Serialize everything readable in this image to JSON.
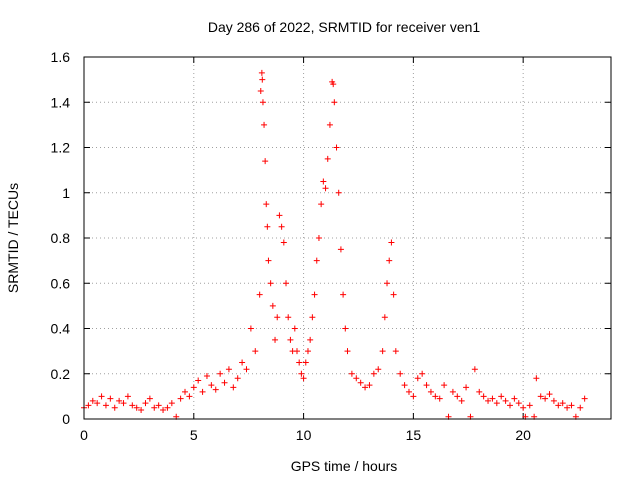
{
  "chart_data": {
    "type": "scatter",
    "title": "Day 286 of 2022, SRMTID for receiver ven1",
    "xlabel": "GPS time / hours",
    "ylabel": "SRMTID / TECUs",
    "xlim": [
      0,
      24
    ],
    "ylim": [
      0,
      1.6
    ],
    "x_ticks": [
      0,
      5,
      10,
      15,
      20
    ],
    "x_tick_labels": [
      "0",
      "5",
      "10",
      "15",
      "20"
    ],
    "y_ticks": [
      0,
      0.2,
      0.4,
      0.6,
      0.8,
      1.0,
      1.2,
      1.4,
      1.6
    ],
    "y_tick_labels": [
      "0",
      "0.2",
      "0.4",
      "0.6",
      "0.8",
      "1",
      "1.2",
      "1.4",
      "1.6"
    ],
    "grid": true,
    "marker": "+",
    "color": "#ff0000",
    "series": [
      {
        "name": "ven1",
        "points": [
          [
            0.0,
            0.05
          ],
          [
            0.2,
            0.06
          ],
          [
            0.4,
            0.08
          ],
          [
            0.6,
            0.07
          ],
          [
            0.8,
            0.1
          ],
          [
            1.0,
            0.06
          ],
          [
            1.2,
            0.09
          ],
          [
            1.4,
            0.05
          ],
          [
            1.6,
            0.08
          ],
          [
            1.8,
            0.07
          ],
          [
            2.0,
            0.1
          ],
          [
            2.2,
            0.06
          ],
          [
            2.4,
            0.05
          ],
          [
            2.6,
            0.04
          ],
          [
            2.8,
            0.07
          ],
          [
            3.0,
            0.09
          ],
          [
            3.2,
            0.05
          ],
          [
            3.4,
            0.06
          ],
          [
            3.6,
            0.04
          ],
          [
            3.8,
            0.05
          ],
          [
            4.0,
            0.07
          ],
          [
            4.2,
            0.01
          ],
          [
            4.4,
            0.09
          ],
          [
            4.6,
            0.12
          ],
          [
            4.8,
            0.1
          ],
          [
            5.0,
            0.14
          ],
          [
            5.2,
            0.17
          ],
          [
            5.4,
            0.12
          ],
          [
            5.6,
            0.19
          ],
          [
            5.8,
            0.15
          ],
          [
            6.0,
            0.13
          ],
          [
            6.2,
            0.2
          ],
          [
            6.4,
            0.16
          ],
          [
            6.6,
            0.22
          ],
          [
            6.8,
            0.14
          ],
          [
            7.0,
            0.18
          ],
          [
            7.2,
            0.25
          ],
          [
            7.4,
            0.22
          ],
          [
            7.6,
            0.4
          ],
          [
            7.8,
            0.3
          ],
          [
            8.0,
            0.55
          ],
          [
            8.05,
            1.45
          ],
          [
            8.1,
            1.53
          ],
          [
            8.12,
            1.5
          ],
          [
            8.15,
            1.4
          ],
          [
            8.2,
            1.3
          ],
          [
            8.25,
            1.14
          ],
          [
            8.3,
            0.95
          ],
          [
            8.35,
            0.85
          ],
          [
            8.4,
            0.7
          ],
          [
            8.5,
            0.6
          ],
          [
            8.6,
            0.5
          ],
          [
            8.7,
            0.35
          ],
          [
            8.8,
            0.45
          ],
          [
            8.9,
            0.9
          ],
          [
            9.0,
            0.85
          ],
          [
            9.1,
            0.78
          ],
          [
            9.2,
            0.6
          ],
          [
            9.3,
            0.45
          ],
          [
            9.4,
            0.35
          ],
          [
            9.5,
            0.3
          ],
          [
            9.6,
            0.4
          ],
          [
            9.7,
            0.3
          ],
          [
            9.8,
            0.25
          ],
          [
            9.9,
            0.2
          ],
          [
            10.0,
            0.18
          ],
          [
            10.1,
            0.25
          ],
          [
            10.2,
            0.3
          ],
          [
            10.3,
            0.35
          ],
          [
            10.4,
            0.45
          ],
          [
            10.5,
            0.55
          ],
          [
            10.6,
            0.7
          ],
          [
            10.7,
            0.8
          ],
          [
            10.8,
            0.95
          ],
          [
            10.9,
            1.05
          ],
          [
            11.0,
            1.02
          ],
          [
            11.1,
            1.15
          ],
          [
            11.2,
            1.3
          ],
          [
            11.3,
            1.49
          ],
          [
            11.35,
            1.48
          ],
          [
            11.4,
            1.4
          ],
          [
            11.5,
            1.2
          ],
          [
            11.6,
            1.0
          ],
          [
            11.7,
            0.75
          ],
          [
            11.8,
            0.55
          ],
          [
            11.9,
            0.4
          ],
          [
            12.0,
            0.3
          ],
          [
            12.2,
            0.2
          ],
          [
            12.4,
            0.18
          ],
          [
            12.6,
            0.16
          ],
          [
            12.8,
            0.14
          ],
          [
            13.0,
            0.15
          ],
          [
            13.2,
            0.2
          ],
          [
            13.4,
            0.22
          ],
          [
            13.6,
            0.3
          ],
          [
            13.7,
            0.45
          ],
          [
            13.8,
            0.6
          ],
          [
            13.9,
            0.7
          ],
          [
            14.0,
            0.78
          ],
          [
            14.1,
            0.55
          ],
          [
            14.2,
            0.3
          ],
          [
            14.4,
            0.2
          ],
          [
            14.6,
            0.15
          ],
          [
            14.8,
            0.12
          ],
          [
            15.0,
            0.1
          ],
          [
            15.2,
            0.18
          ],
          [
            15.4,
            0.2
          ],
          [
            15.6,
            0.15
          ],
          [
            15.8,
            0.12
          ],
          [
            16.0,
            0.1
          ],
          [
            16.2,
            0.09
          ],
          [
            16.4,
            0.15
          ],
          [
            16.6,
            0.01
          ],
          [
            16.8,
            0.12
          ],
          [
            17.0,
            0.1
          ],
          [
            17.2,
            0.08
          ],
          [
            17.4,
            0.14
          ],
          [
            17.6,
            0.01
          ],
          [
            17.8,
            0.22
          ],
          [
            18.0,
            0.12
          ],
          [
            18.2,
            0.1
          ],
          [
            18.4,
            0.08
          ],
          [
            18.6,
            0.09
          ],
          [
            18.8,
            0.07
          ],
          [
            19.0,
            0.1
          ],
          [
            19.2,
            0.08
          ],
          [
            19.4,
            0.06
          ],
          [
            19.6,
            0.09
          ],
          [
            19.8,
            0.07
          ],
          [
            20.0,
            0.05
          ],
          [
            20.1,
            0.01
          ],
          [
            20.3,
            0.06
          ],
          [
            20.5,
            0.01
          ],
          [
            20.6,
            0.18
          ],
          [
            20.8,
            0.1
          ],
          [
            21.0,
            0.09
          ],
          [
            21.2,
            0.11
          ],
          [
            21.4,
            0.08
          ],
          [
            21.6,
            0.06
          ],
          [
            21.8,
            0.07
          ],
          [
            22.0,
            0.05
          ],
          [
            22.2,
            0.06
          ],
          [
            22.4,
            0.01
          ],
          [
            22.6,
            0.05
          ],
          [
            22.8,
            0.09
          ]
        ]
      }
    ]
  }
}
